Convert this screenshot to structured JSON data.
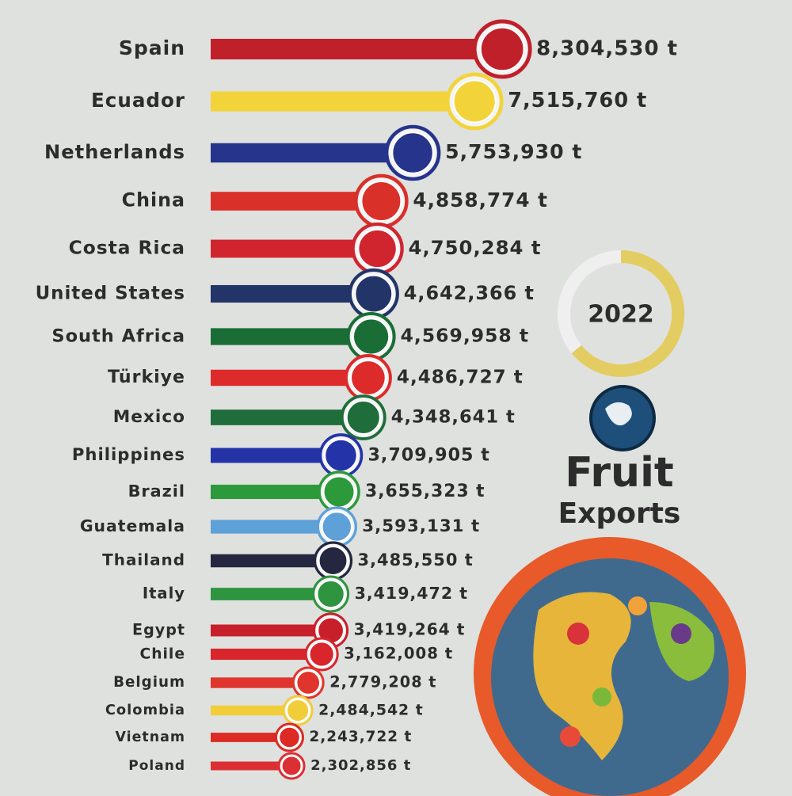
{
  "chart_data": {
    "type": "bar",
    "orientation": "horizontal",
    "title": "Fruit",
    "subtitle": "Exports",
    "year": "2022",
    "categories": [
      "Spain",
      "Ecuador",
      "Netherlands",
      "China",
      "Costa Rica",
      "United States",
      "South Africa",
      "Türkiye",
      "Mexico",
      "Philippines",
      "Brazil",
      "Guatemala",
      "Thailand",
      "Italy",
      "Egypt",
      "Chile",
      "Belgium",
      "Colombia",
      "Vietnam",
      "Poland"
    ],
    "values": [
      8304530,
      7515760,
      5753930,
      4858774,
      4750284,
      4642366,
      4569958,
      4486727,
      4348641,
      3709905,
      3655323,
      3593131,
      3485550,
      3419472,
      3419264,
      3162008,
      2779208,
      2484542,
      2243722,
      2302856
    ],
    "value_labels": [
      "8,304,530 t",
      "7,515,760 t",
      "5,753,930 t",
      "4,858,774 t",
      "4,750,284 t",
      "4,642,366 t",
      "4,569,958 t",
      "4,486,727 t",
      "4,348,641 t",
      "3,709,905 t",
      "3,655,323 t",
      "3,593,131 t",
      "3,485,550 t",
      "3,419,472 t",
      "3,419,264 t",
      "3,162,008 t",
      "2,779,208 t",
      "2,484,542 t",
      "2,243,722 t",
      "2,302,856 t"
    ],
    "colors": [
      "#c0202a",
      "#f2d43a",
      "#27348b",
      "#d9302a",
      "#d0252f",
      "#233468",
      "#1a6e35",
      "#dd2a2a",
      "#1f6d3a",
      "#2433a8",
      "#2c9a3a",
      "#5ea0d8",
      "#24273f",
      "#2f9440",
      "#c8202a",
      "#d8262c",
      "#e0352c",
      "#f1cd3a",
      "#db2b24",
      "#dc2f33"
    ],
    "xlim": [
      0,
      9000000
    ]
  }
}
